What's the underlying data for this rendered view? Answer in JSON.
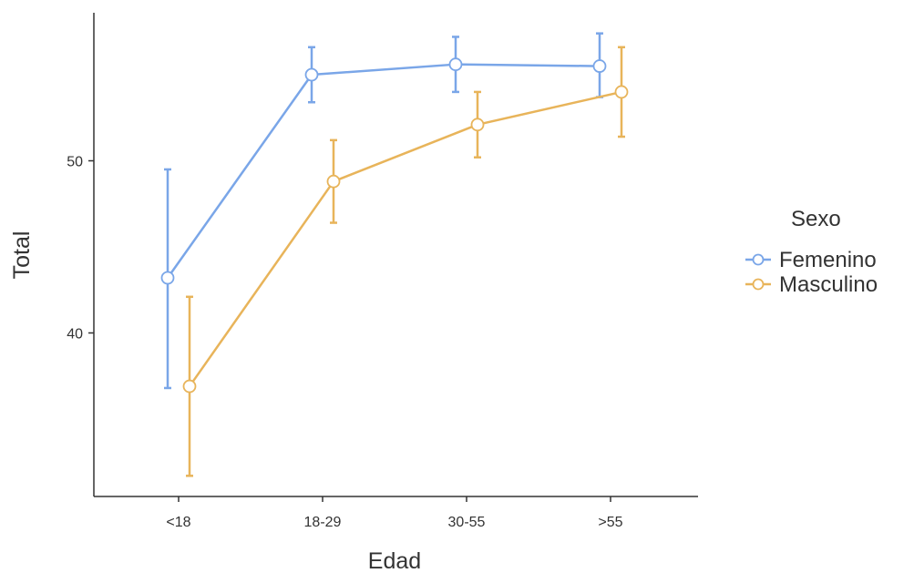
{
  "chart_data": {
    "type": "line",
    "xlabel": "Edad",
    "ylabel": "Total",
    "categories": [
      "<18",
      "18-29",
      "30-55",
      ">55"
    ],
    "y_ticks": [
      40,
      50
    ],
    "ylim": [
      30.5,
      58.6
    ],
    "grid": false,
    "legend": {
      "title": "Sexo",
      "position": "right"
    },
    "series": [
      {
        "name": "Femenino",
        "color": "#7aa6e8",
        "values": [
          43.2,
          55.0,
          55.6,
          55.5
        ],
        "error_low": [
          36.8,
          53.4,
          54.0,
          53.7
        ],
        "error_high": [
          49.5,
          56.6,
          57.2,
          57.4
        ]
      },
      {
        "name": "Masculino",
        "color": "#e8b45a",
        "values": [
          36.9,
          48.8,
          52.1,
          54.0
        ],
        "error_low": [
          31.7,
          46.4,
          50.2,
          51.4
        ],
        "error_high": [
          42.1,
          51.2,
          54.0,
          56.6
        ]
      }
    ]
  }
}
